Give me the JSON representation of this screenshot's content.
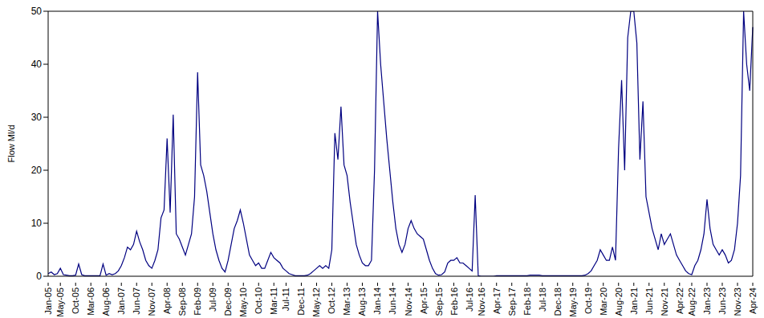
{
  "chart_data": {
    "type": "line",
    "y_label": "Flow Ml/d",
    "color": "#000080",
    "grid": false,
    "ylim": [
      0,
      50
    ],
    "yticks": [
      0,
      10,
      20,
      30,
      40,
      50
    ],
    "categories": [
      "Jan-05",
      null,
      null,
      null,
      "May-05",
      null,
      null,
      null,
      null,
      "Oct-05",
      null,
      null,
      null,
      null,
      "Mar-06",
      null,
      null,
      null,
      null,
      "Aug-06",
      null,
      null,
      null,
      null,
      "Jan-07",
      null,
      null,
      null,
      null,
      "Jun-07",
      null,
      null,
      null,
      null,
      "Nov-07",
      null,
      null,
      null,
      null,
      "Apr-08",
      null,
      null,
      null,
      null,
      "Sep-08",
      null,
      null,
      null,
      null,
      "Feb-09",
      null,
      null,
      null,
      null,
      "Jul-09",
      null,
      null,
      null,
      null,
      "Dec-09",
      null,
      null,
      null,
      null,
      "May-10",
      null,
      null,
      null,
      null,
      "Oct-10",
      null,
      null,
      null,
      null,
      "Mar-11",
      null,
      null,
      null,
      "Jul-11",
      null,
      null,
      null,
      null,
      "Dec-11",
      null,
      null,
      null,
      null,
      "May-12",
      null,
      null,
      null,
      null,
      "Oct-12",
      null,
      null,
      null,
      null,
      "Mar-13",
      null,
      null,
      null,
      null,
      "Aug-13",
      null,
      null,
      null,
      null,
      "Jan-14",
      null,
      null,
      null,
      null,
      "Jun-14",
      null,
      null,
      null,
      null,
      "Nov-14",
      null,
      null,
      null,
      null,
      "Apr-15",
      null,
      null,
      null,
      null,
      "Sep-15",
      null,
      null,
      null,
      null,
      "Feb-16",
      null,
      null,
      null,
      null,
      "Jul-16",
      null,
      null,
      null,
      "Nov-16",
      null,
      null,
      null,
      null,
      "Apr-17",
      null,
      null,
      null,
      null,
      "Sep-17",
      null,
      null,
      null,
      null,
      "Feb-18",
      null,
      null,
      null,
      null,
      "Jul-18",
      null,
      null,
      null,
      null,
      "Dec-18",
      null,
      null,
      null,
      null,
      "May-19",
      null,
      null,
      null,
      null,
      "Oct-19",
      null,
      null,
      null,
      null,
      "Mar-20",
      null,
      null,
      null,
      null,
      "Aug-20",
      null,
      null,
      null,
      null,
      "Jan-21",
      null,
      null,
      null,
      null,
      "Jun-21",
      null,
      null,
      null,
      null,
      "Nov-21",
      null,
      null,
      null,
      null,
      "Apr-22",
      null,
      null,
      null,
      "Aug-22",
      null,
      null,
      null,
      null,
      "Jan-23",
      null,
      null,
      null,
      null,
      "Jun-23",
      null,
      null,
      null,
      null,
      "Nov-23",
      null,
      null,
      null,
      null,
      "Apr-24"
    ],
    "values": [
      0.5,
      0.8,
      0.3,
      0.5,
      1.5,
      0.3,
      0.2,
      0.1,
      0.1,
      0.2,
      2.3,
      0.3,
      0.1,
      0.1,
      0.1,
      0.1,
      0.1,
      0.1,
      2.3,
      0.2,
      0.5,
      0.3,
      0.5,
      1,
      2,
      3.5,
      5.5,
      5,
      6,
      8.5,
      6.5,
      5,
      3,
      2,
      1.5,
      3,
      5,
      11,
      12.5,
      26,
      12,
      30.5,
      8,
      7,
      5.5,
      4,
      6,
      8,
      15,
      38.5,
      21,
      19,
      16,
      12,
      8,
      5,
      3,
      1.5,
      0.8,
      3,
      6,
      9,
      10.5,
      12.5,
      10,
      7,
      4,
      3,
      2,
      2.5,
      1.5,
      1.5,
      3,
      4.5,
      3.5,
      3,
      2.5,
      1.5,
      1,
      0.5,
      0.3,
      0.1,
      0.1,
      0.1,
      0.1,
      0.2,
      0.5,
      1,
      1.5,
      2,
      1.5,
      2,
      1.5,
      5,
      27,
      22,
      32,
      21,
      19,
      14,
      10,
      6,
      4,
      2.5,
      2,
      2,
      3,
      20,
      50,
      40,
      33,
      26,
      20,
      14,
      9,
      6,
      4.5,
      6,
      9,
      10.5,
      9,
      8,
      7.5,
      7,
      5,
      3,
      1.5,
      0.5,
      0.2,
      0.3,
      0.8,
      2.5,
      3,
      3,
      3.5,
      2.5,
      2.5,
      2,
      1.5,
      1,
      15.3,
      0.1,
      0,
      0,
      0,
      0,
      0,
      0.1,
      0.1,
      0.1,
      0.1,
      0.1,
      0.1,
      0.1,
      0.1,
      0.1,
      0.1,
      0.1,
      0.2,
      0.2,
      0.2,
      0.2,
      0.1,
      0.1,
      0.1,
      0.1,
      0.1,
      0.1,
      0.1,
      0.1,
      0.1,
      0.1,
      0.1,
      0.1,
      0.1,
      0.1,
      0.2,
      0.5,
      1,
      2,
      3,
      5,
      4,
      3,
      3,
      5.5,
      3,
      24,
      37,
      20,
      45,
      50,
      50,
      44,
      22,
      33,
      15,
      12,
      9,
      7,
      5,
      8,
      6,
      7,
      8,
      6,
      4,
      3,
      2,
      1,
      0.5,
      0.3,
      2,
      3,
      5,
      8,
      14.5,
      9,
      6,
      5,
      4,
      5,
      4,
      2.5,
      3,
      5,
      10,
      19,
      50,
      40,
      35,
      47
    ]
  }
}
